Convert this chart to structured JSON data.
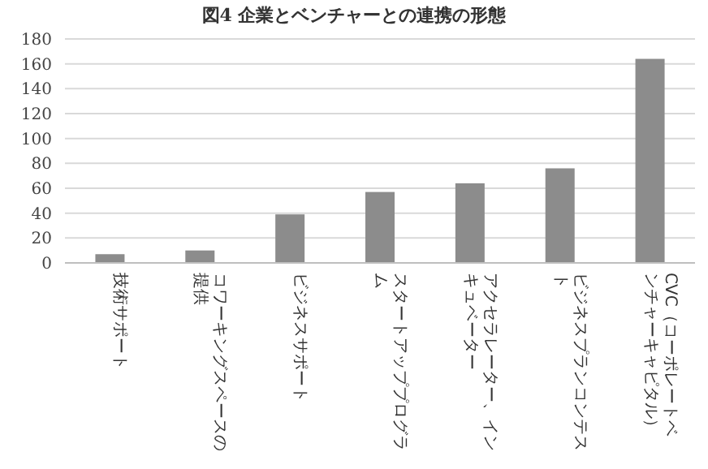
{
  "chart_data": {
    "type": "bar",
    "title": "図4 企業とベンチャーとの連携の形態",
    "categories": [
      "技術サポート",
      "コワーキングスペースの提供",
      "ビジネスサポート",
      "スタートアッププログラム",
      "アクセラレーター、インキュベーター",
      "ビジネスプランコンテスト",
      "CVC（コーポレートベンチャーキャピタル）"
    ],
    "values": [
      7,
      10,
      39,
      57,
      64,
      76,
      164
    ],
    "color": "#8c8c8c",
    "ylim": [
      0,
      180
    ],
    "yticks": [
      0,
      20,
      40,
      60,
      80,
      100,
      120,
      140,
      160,
      180
    ],
    "grid": "y"
  }
}
